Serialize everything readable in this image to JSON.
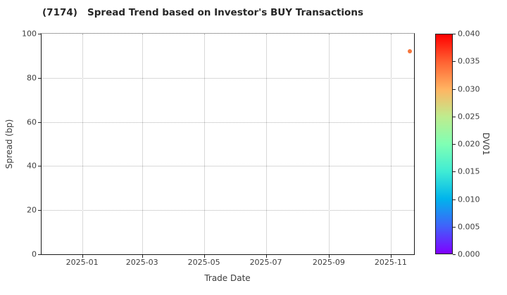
{
  "chart_data": {
    "type": "scatter",
    "title": "(7174)   Spread Trend based on Investor's BUY Transactions",
    "xlabel": "Trade Date",
    "ylabel": "Spread (bp)",
    "ylim": [
      0,
      100
    ],
    "grid": true,
    "x_axis_range": [
      "2024-11-22",
      "2025-11-24"
    ],
    "x_ticks": [
      {
        "label": "2025-01",
        "date": "2025-01-01"
      },
      {
        "label": "2025-03",
        "date": "2025-03-01"
      },
      {
        "label": "2025-05",
        "date": "2025-05-01"
      },
      {
        "label": "2025-07",
        "date": "2025-07-01"
      },
      {
        "label": "2025-09",
        "date": "2025-09-01"
      },
      {
        "label": "2025-11",
        "date": "2025-11-01"
      }
    ],
    "y_ticks": [
      {
        "label": "0",
        "value": 0
      },
      {
        "label": "20",
        "value": 20
      },
      {
        "label": "40",
        "value": 40
      },
      {
        "label": "60",
        "value": 60
      },
      {
        "label": "80",
        "value": 80
      },
      {
        "label": "100",
        "value": 100
      }
    ],
    "points": [
      {
        "date": "2025-11-20",
        "spread_bp": 92,
        "dv01": 0.034,
        "color": "#f5763b"
      }
    ],
    "colorbar": {
      "label": "DV01",
      "min": 0.0,
      "max": 0.04,
      "ticks": [
        "0.000",
        "0.005",
        "0.010",
        "0.015",
        "0.020",
        "0.025",
        "0.030",
        "0.035",
        "0.040"
      ],
      "colormap": "rainbow",
      "stops_bottom_to_top": [
        "#8000ff",
        "#4062fa",
        "#00b4ec",
        "#40ecd4",
        "#80ffb4",
        "#bfec8e",
        "#ffb462",
        "#ff6232",
        "#ff0000"
      ]
    }
  }
}
